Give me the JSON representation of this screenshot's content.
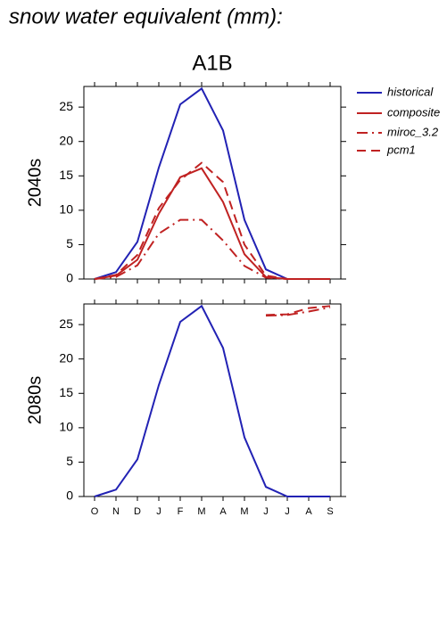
{
  "title": "snow water equivalent (mm):",
  "chart_data": [
    {
      "type": "line",
      "title": "A1B",
      "ylabel": "2040s",
      "ylim": [
        0,
        28
      ],
      "yticks": [
        0,
        5,
        10,
        15,
        20,
        25
      ],
      "series": [
        {
          "name": "historical",
          "color": "#2222b4",
          "dash": "none",
          "values": [
            0,
            1,
            5.4,
            16.2,
            25.4,
            27.7,
            21.6,
            8.6,
            1.4,
            0,
            0,
            0
          ]
        },
        {
          "name": "composite",
          "color": "#c02222",
          "dash": "none",
          "values": [
            0,
            0.5,
            2.8,
            9.5,
            14.8,
            16.1,
            11.2,
            3.6,
            0.3,
            0,
            0,
            0
          ]
        },
        {
          "name": "miroc_3.2",
          "color": "#c02222",
          "dash": "12,5,2,5",
          "values": [
            0,
            0.3,
            2,
            6.6,
            8.6,
            8.6,
            5.6,
            1.9,
            0.2,
            0,
            0,
            0
          ]
        },
        {
          "name": "pcm1",
          "color": "#c02222",
          "dash": "10,6",
          "values": [
            0,
            0.6,
            3.5,
            10.3,
            14.4,
            16.9,
            14.1,
            5,
            0.5,
            0,
            0,
            0
          ]
        }
      ]
    },
    {
      "type": "line",
      "ylabel": "2080s",
      "categories": [
        "O",
        "N",
        "D",
        "J",
        "F",
        "M",
        "A",
        "M",
        "J",
        "J",
        "A",
        "S"
      ],
      "ylim": [
        0,
        28
      ],
      "yticks": [
        0,
        5,
        10,
        15,
        20,
        25
      ],
      "series": [
        {
          "color": "#2222b4",
          "dash": "none",
          "values": [
            0,
            1,
            5.4,
            16.2,
            25.4,
            27.7,
            21.6,
            8.6,
            1.4,
            0,
            0,
            0
          ]
        },
        {
          "color": "#c02222",
          "dash": "12,5,2,5",
          "values": [
            null,
            null,
            null,
            null,
            null,
            null,
            null,
            null,
            26.3,
            26.4,
            26.9,
            27.5
          ]
        },
        {
          "color": "#c02222",
          "dash": "10,6",
          "values": [
            null,
            null,
            null,
            null,
            null,
            null,
            null,
            null,
            26.4,
            26.5,
            27.4,
            27.7
          ]
        }
      ]
    }
  ]
}
